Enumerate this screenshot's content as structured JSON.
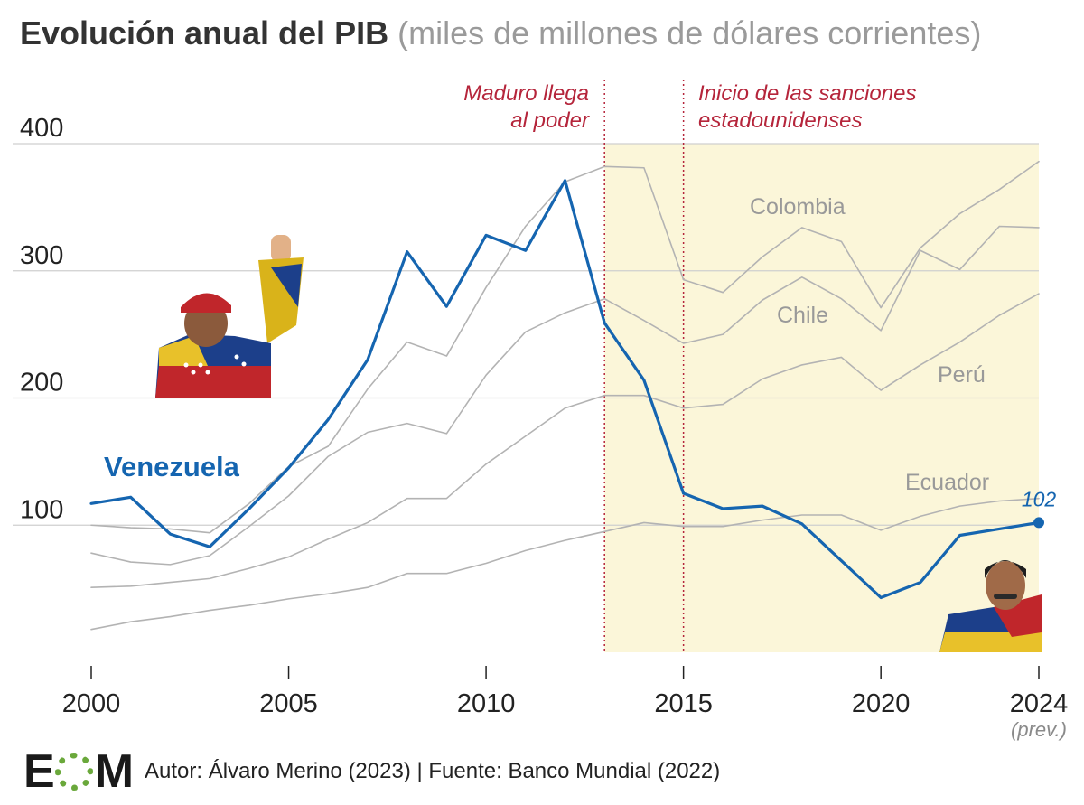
{
  "header": {
    "title": "Evolución anual del PIB",
    "subtitle": "(miles de millones de dólares corrientes)"
  },
  "annotations": {
    "maduro": [
      "Maduro llega",
      "al poder"
    ],
    "sanctions": [
      "Inicio de las sanciones",
      "estadounidenses"
    ],
    "prev_label": "(prev.)",
    "last_value_label": "102"
  },
  "colors": {
    "venezuela": "#1565b0",
    "others": "#b3b3b3",
    "labels": "#999999",
    "annotation": "#b5253b",
    "shade": "#fbf6d9",
    "grid": "#cfcfcf",
    "logo_green": "#6aa83b"
  },
  "footer": {
    "logo_left": "E",
    "logo_right": "M",
    "credits": "Autor: Álvaro Merino (2023) | Fuente: Banco Mundial (2022)"
  },
  "illustrations": {
    "left": "Hugo Chávez photo",
    "right": "Nicolás Maduro photo"
  },
  "chart_data": {
    "type": "line",
    "title": "Evolución anual del PIB",
    "subtitle": "(miles de millones de dólares corrientes)",
    "xlabel": "",
    "ylabel": "",
    "x": [
      2000,
      2001,
      2002,
      2003,
      2004,
      2005,
      2006,
      2007,
      2008,
      2009,
      2010,
      2011,
      2012,
      2013,
      2014,
      2015,
      2016,
      2017,
      2018,
      2019,
      2020,
      2021,
      2022,
      2023,
      2024
    ],
    "x_ticks": [
      2000,
      2005,
      2010,
      2015,
      2020,
      2024
    ],
    "y_ticks": [
      100,
      200,
      300,
      400
    ],
    "xlim": [
      2000,
      2024
    ],
    "ylim": [
      0,
      400
    ],
    "grid": "horizontal",
    "shaded_region": [
      2013,
      2024
    ],
    "vertical_markers": [
      2013,
      2015
    ],
    "series": [
      {
        "name": "Venezuela",
        "highlight": true,
        "values": [
          117,
          122,
          93,
          83,
          113,
          145,
          183,
          230,
          315,
          272,
          328,
          316,
          371,
          259,
          214,
          125,
          113,
          115,
          101,
          72,
          43,
          55,
          92,
          97,
          102
        ]
      },
      {
        "name": "Colombia",
        "values": [
          100,
          98,
          97,
          94,
          117,
          146,
          162,
          207,
          244,
          233,
          287,
          335,
          370,
          382,
          381,
          293,
          283,
          311,
          334,
          323,
          271,
          318,
          345,
          364,
          386
        ]
      },
      {
        "name": "Chile",
        "values": [
          78,
          71,
          69,
          76,
          99,
          123,
          154,
          173,
          180,
          172,
          218,
          252,
          267,
          278,
          261,
          243,
          250,
          277,
          295,
          278,
          253,
          316,
          301,
          335,
          334
        ]
      },
      {
        "name": "Perú",
        "values": [
          51,
          52,
          55,
          58,
          66,
          75,
          89,
          102,
          121,
          121,
          148,
          170,
          192,
          202,
          202,
          192,
          195,
          215,
          226,
          232,
          206,
          226,
          244,
          265,
          282
        ]
      },
      {
        "name": "Ecuador",
        "values": [
          18,
          24,
          28,
          33,
          37,
          42,
          46,
          51,
          62,
          62,
          70,
          80,
          88,
          95,
          102,
          99,
          99,
          104,
          108,
          108,
          96,
          107,
          115,
          119,
          121
        ]
      }
    ],
    "series_labels": {
      "Venezuela": "Venezuela",
      "Colombia": "Colombia",
      "Chile": "Chile",
      "Perú": "Perú",
      "Ecuador": "Ecuador"
    }
  }
}
